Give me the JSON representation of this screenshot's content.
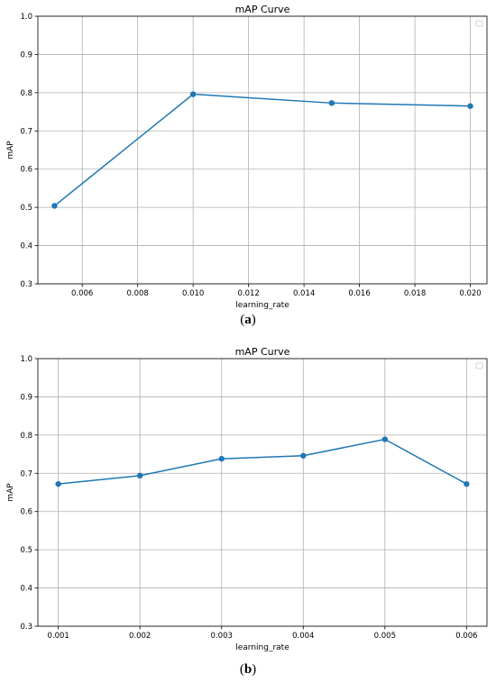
{
  "chart_data": [
    {
      "type": "line",
      "title": "mAP Curve",
      "xlabel": "learning_rate",
      "ylabel": "mAP",
      "xlim": [
        0.0044,
        0.0206
      ],
      "ylim": [
        0.3,
        1.0
      ],
      "xticks": [
        "0.006",
        "0.008",
        "0.010",
        "0.012",
        "0.014",
        "0.016",
        "0.018",
        "0.020"
      ],
      "yticks": [
        "0.3",
        "0.4",
        "0.5",
        "0.6",
        "0.7",
        "0.8",
        "0.9",
        "1.0"
      ],
      "grid": true,
      "legend": "top-right",
      "color": "#1f77b4",
      "series": [
        {
          "x": [
            0.005,
            0.01,
            0.015,
            0.02
          ],
          "values": [
            0.504,
            0.796,
            0.773,
            0.765
          ]
        }
      ]
    },
    {
      "type": "line",
      "title": "mAP Curve",
      "xlabel": "learning_rate",
      "ylabel": "mAP",
      "xlim": [
        0.00075,
        0.00625
      ],
      "ylim": [
        0.3,
        1.0
      ],
      "xticks": [
        "0.001",
        "0.002",
        "0.003",
        "0.004",
        "0.005",
        "0.006"
      ],
      "yticks": [
        "0.3",
        "0.4",
        "0.5",
        "0.6",
        "0.7",
        "0.8",
        "0.9",
        "1.0"
      ],
      "grid": true,
      "legend": "top-right",
      "color": "#1f77b4",
      "series": [
        {
          "x": [
            0.001,
            0.002,
            0.003,
            0.004,
            0.005,
            0.006
          ],
          "values": [
            0.672,
            0.694,
            0.738,
            0.746,
            0.789,
            0.672
          ]
        }
      ]
    }
  ],
  "captions": {
    "a": "a",
    "b": "b"
  }
}
